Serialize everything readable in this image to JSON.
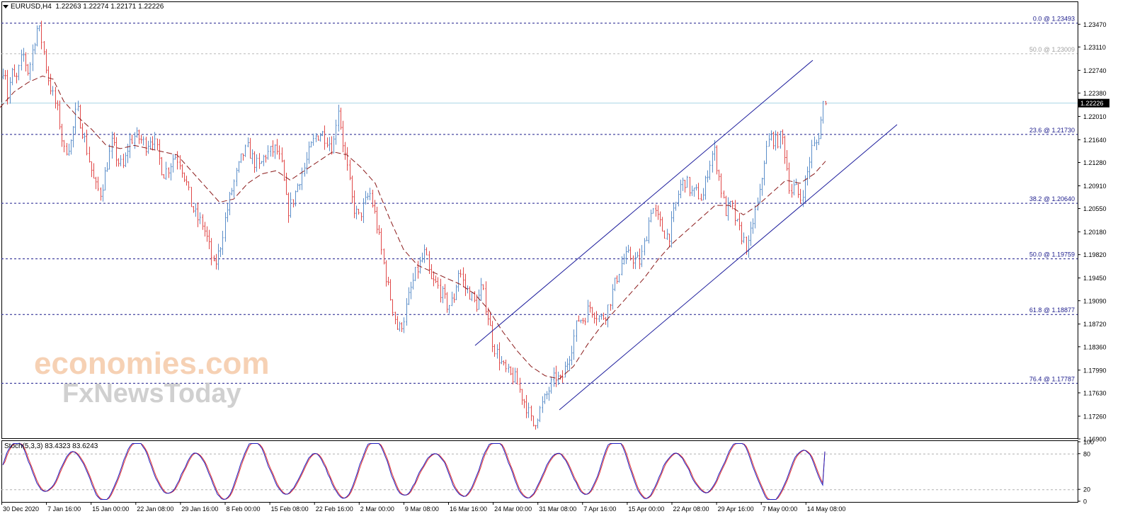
{
  "header": {
    "symbol": "EURUSD,H4",
    "ohlc": "1.22263 1.22274 1.22171 1.22226"
  },
  "stoch_label": "Stoch(5,3,3) 83.4323 83.6243",
  "watermark": {
    "line1": "economies.com",
    "line2": "FxNewsToday"
  },
  "colors": {
    "bull": "#5b8ec9",
    "bear": "#e04848",
    "ma": "#8b1a1a",
    "level": "#1c1c8c",
    "channel": "#1c1c9c",
    "current": "#a9d6e6",
    "stoch_main": "#2020c0",
    "stoch_signal": "#e03030"
  },
  "chart_data": {
    "type": "candlestick",
    "symbol": "EURUSD",
    "timeframe": "H4",
    "ylim": [
      1.169,
      1.2363
    ],
    "y_ticks": [
      "1.23470",
      "1.23110",
      "1.22740",
      "1.22380",
      "1.22010",
      "1.21640",
      "1.21280",
      "1.20910",
      "1.20550",
      "1.20180",
      "1.19820",
      "1.19450",
      "1.19090",
      "1.18720",
      "1.18360",
      "1.17990",
      "1.17630",
      "1.17260",
      "1.16900"
    ],
    "x_ticks": [
      "30 Dec 2020",
      "7 Jan 16:00",
      "15 Jan 00:00",
      "22 Jan 08:00",
      "29 Jan 16:00",
      "8 Feb 00:00",
      "15 Feb 08:00",
      "22 Feb 16:00",
      "2 Mar 00:00",
      "9 Mar 08:00",
      "16 Mar 16:00",
      "24 Mar 00:00",
      "31 Mar 08:00",
      "7 Apr 16:00",
      "15 Apr 00:00",
      "22 Apr 08:00",
      "29 Apr 16:00",
      "7 May 00:00",
      "14 May 08:00"
    ],
    "current_price": {
      "value": 1.22226,
      "label": "1.22226"
    },
    "levels": [
      {
        "value": 1.23493,
        "label": "0.0 @ 1.23493",
        "faint": false
      },
      {
        "value": 1.23009,
        "label": "50.0 @ 1.23009",
        "faint": true
      },
      {
        "value": 1.2173,
        "label": "23.6 @ 1.21730",
        "faint": false
      },
      {
        "value": 1.2064,
        "label": "38.2 @ 1.20640",
        "faint": false
      },
      {
        "value": 1.19759,
        "label": "50.0 @ 1.19759",
        "faint": false
      },
      {
        "value": 1.18877,
        "label": "61.8 @ 1.18877",
        "faint": false
      },
      {
        "value": 1.17787,
        "label": "76.4 @ 1.17787",
        "faint": false
      }
    ],
    "price_path": [
      [
        0,
        1.225
      ],
      [
        6,
        1.229
      ],
      [
        10,
        1.223
      ],
      [
        16,
        1.227
      ],
      [
        22,
        1.2255
      ],
      [
        32,
        1.23
      ],
      [
        40,
        1.227
      ],
      [
        48,
        1.232
      ],
      [
        53,
        1.2345
      ],
      [
        60,
        1.2315
      ],
      [
        66,
        1.227
      ],
      [
        74,
        1.2235
      ],
      [
        82,
        1.2205
      ],
      [
        90,
        1.2145
      ],
      [
        100,
        1.216
      ],
      [
        108,
        1.2215
      ],
      [
        118,
        1.217
      ],
      [
        126,
        1.213
      ],
      [
        134,
        1.209
      ],
      [
        142,
        1.208
      ],
      [
        150,
        1.212
      ],
      [
        158,
        1.216
      ],
      [
        166,
        1.213
      ],
      [
        174,
        1.212
      ],
      [
        182,
        1.216
      ],
      [
        190,
        1.217
      ],
      [
        198,
        1.2165
      ],
      [
        206,
        1.2155
      ],
      [
        214,
        1.217
      ],
      [
        222,
        1.2145
      ],
      [
        230,
        1.211
      ],
      [
        238,
        1.212
      ],
      [
        246,
        1.214
      ],
      [
        254,
        1.213
      ],
      [
        262,
        1.21
      ],
      [
        270,
        1.206
      ],
      [
        278,
        1.204
      ],
      [
        286,
        1.203
      ],
      [
        294,
        1.2
      ],
      [
        302,
        1.196
      ],
      [
        310,
        1.199
      ],
      [
        318,
        1.204
      ],
      [
        326,
        1.208
      ],
      [
        334,
        1.211
      ],
      [
        342,
        1.214
      ],
      [
        350,
        1.215
      ],
      [
        358,
        1.213
      ],
      [
        366,
        1.212
      ],
      [
        374,
        1.214
      ],
      [
        382,
        1.2145
      ],
      [
        390,
        1.215
      ],
      [
        398,
        1.212
      ],
      [
        406,
        1.205
      ],
      [
        414,
        1.207
      ],
      [
        422,
        1.21
      ],
      [
        430,
        1.212
      ],
      [
        438,
        1.215
      ],
      [
        446,
        1.217
      ],
      [
        454,
        1.2175
      ],
      [
        462,
        1.2165
      ],
      [
        470,
        1.215
      ],
      [
        477,
        1.222
      ],
      [
        484,
        1.216
      ],
      [
        490,
        1.212
      ],
      [
        498,
        1.206
      ],
      [
        506,
        1.204
      ],
      [
        514,
        1.206
      ],
      [
        522,
        1.208
      ],
      [
        530,
        1.204
      ],
      [
        538,
        1.199
      ],
      [
        546,
        1.194
      ],
      [
        554,
        1.19
      ],
      [
        562,
        1.186
      ],
      [
        570,
        1.188
      ],
      [
        578,
        1.192
      ],
      [
        586,
        1.195
      ],
      [
        594,
        1.197
      ],
      [
        600,
        1.1985
      ],
      [
        608,
        1.194
      ],
      [
        616,
        1.1935
      ],
      [
        624,
        1.192
      ],
      [
        632,
        1.19
      ],
      [
        640,
        1.191
      ],
      [
        648,
        1.196
      ],
      [
        656,
        1.193
      ],
      [
        664,
        1.192
      ],
      [
        672,
        1.19
      ],
      [
        680,
        1.193
      ],
      [
        688,
        1.189
      ],
      [
        696,
        1.184
      ],
      [
        704,
        1.182
      ],
      [
        712,
        1.18
      ],
      [
        720,
        1.179
      ],
      [
        728,
        1.1785
      ],
      [
        736,
        1.176
      ],
      [
        744,
        1.174
      ],
      [
        752,
        1.171
      ],
      [
        760,
        1.173
      ],
      [
        768,
        1.175
      ],
      [
        776,
        1.177
      ],
      [
        784,
        1.179
      ],
      [
        792,
        1.178
      ],
      [
        800,
        1.181
      ],
      [
        808,
        1.184
      ],
      [
        816,
        1.188
      ],
      [
        824,
        1.188
      ],
      [
        832,
        1.19
      ],
      [
        840,
        1.189
      ],
      [
        848,
        1.188
      ],
      [
        856,
        1.189
      ],
      [
        864,
        1.192
      ],
      [
        872,
        1.195
      ],
      [
        880,
        1.1975
      ],
      [
        888,
        1.198
      ],
      [
        896,
        1.1975
      ],
      [
        904,
        1.197
      ],
      [
        912,
        1.201
      ],
      [
        920,
        1.206
      ],
      [
        928,
        1.204
      ],
      [
        936,
        1.202
      ],
      [
        944,
        1.201
      ],
      [
        952,
        1.205
      ],
      [
        960,
        1.209
      ],
      [
        968,
        1.21
      ],
      [
        976,
        1.208
      ],
      [
        984,
        1.208
      ],
      [
        992,
        1.207
      ],
      [
        1000,
        1.212
      ],
      [
        1008,
        1.215
      ],
      [
        1016,
        1.21
      ],
      [
        1024,
        1.205
      ],
      [
        1032,
        1.206
      ],
      [
        1040,
        1.203
      ],
      [
        1048,
        1.201
      ],
      [
        1056,
        1.199
      ],
      [
        1064,
        1.204
      ],
      [
        1072,
        1.207
      ],
      [
        1080,
        1.214
      ],
      [
        1088,
        1.217
      ],
      [
        1096,
        1.216
      ],
      [
        1104,
        1.217
      ],
      [
        1110,
        1.213
      ],
      [
        1116,
        1.208
      ],
      [
        1122,
        1.209
      ],
      [
        1130,
        1.207
      ],
      [
        1138,
        1.21
      ],
      [
        1146,
        1.215
      ],
      [
        1154,
        1.216
      ],
      [
        1160,
        1.22
      ],
      [
        1164,
        1.2235
      ],
      [
        1168,
        1.2222
      ]
    ],
    "ma_path": [
      [
        0,
        1.2215
      ],
      [
        20,
        1.224
      ],
      [
        40,
        1.2255
      ],
      [
        60,
        1.2265
      ],
      [
        75,
        1.226
      ],
      [
        90,
        1.2225
      ],
      [
        110,
        1.22
      ],
      [
        130,
        1.218
      ],
      [
        150,
        1.2155
      ],
      [
        170,
        1.215
      ],
      [
        190,
        1.2155
      ],
      [
        210,
        1.215
      ],
      [
        230,
        1.2145
      ],
      [
        250,
        1.214
      ],
      [
        270,
        1.2115
      ],
      [
        290,
        1.209
      ],
      [
        310,
        1.2065
      ],
      [
        330,
        1.207
      ],
      [
        350,
        1.2095
      ],
      [
        370,
        1.211
      ],
      [
        390,
        1.2115
      ],
      [
        410,
        1.21
      ],
      [
        430,
        1.2115
      ],
      [
        450,
        1.213
      ],
      [
        470,
        1.2145
      ],
      [
        490,
        1.214
      ],
      [
        510,
        1.212
      ],
      [
        530,
        1.2095
      ],
      [
        550,
        1.204
      ],
      [
        570,
        1.199
      ],
      [
        590,
        1.1965
      ],
      [
        610,
        1.1955
      ],
      [
        630,
        1.1945
      ],
      [
        650,
        1.1935
      ],
      [
        670,
        1.192
      ],
      [
        690,
        1.1895
      ],
      [
        710,
        1.186
      ],
      [
        730,
        1.183
      ],
      [
        750,
        1.1805
      ],
      [
        770,
        1.179
      ],
      [
        790,
        1.1785
      ],
      [
        810,
        1.1805
      ],
      [
        830,
        1.184
      ],
      [
        850,
        1.187
      ],
      [
        870,
        1.1895
      ],
      [
        890,
        1.192
      ],
      [
        910,
        1.1945
      ],
      [
        930,
        1.1975
      ],
      [
        950,
        1.2
      ],
      [
        970,
        1.202
      ],
      [
        990,
        1.204
      ],
      [
        1010,
        1.206
      ],
      [
        1030,
        1.206
      ],
      [
        1050,
        1.2045
      ],
      [
        1070,
        1.206
      ],
      [
        1090,
        1.208
      ],
      [
        1110,
        1.21
      ],
      [
        1130,
        1.2095
      ],
      [
        1150,
        1.211
      ],
      [
        1166,
        1.213
      ]
    ],
    "channel_upper": [
      [
        671,
        1.1838
      ],
      [
        1148,
        1.229
      ]
    ],
    "channel_lower": [
      [
        790,
        1.1736
      ],
      [
        1267,
        1.2188
      ]
    ],
    "stochastic": {
      "params": "5,3,3",
      "main": 83.4323,
      "signal": 83.6243,
      "levels": [
        80,
        20
      ],
      "ylim": [
        0,
        100
      ],
      "y_ticks": [
        "100",
        "80",
        "20",
        "0"
      ]
    }
  }
}
